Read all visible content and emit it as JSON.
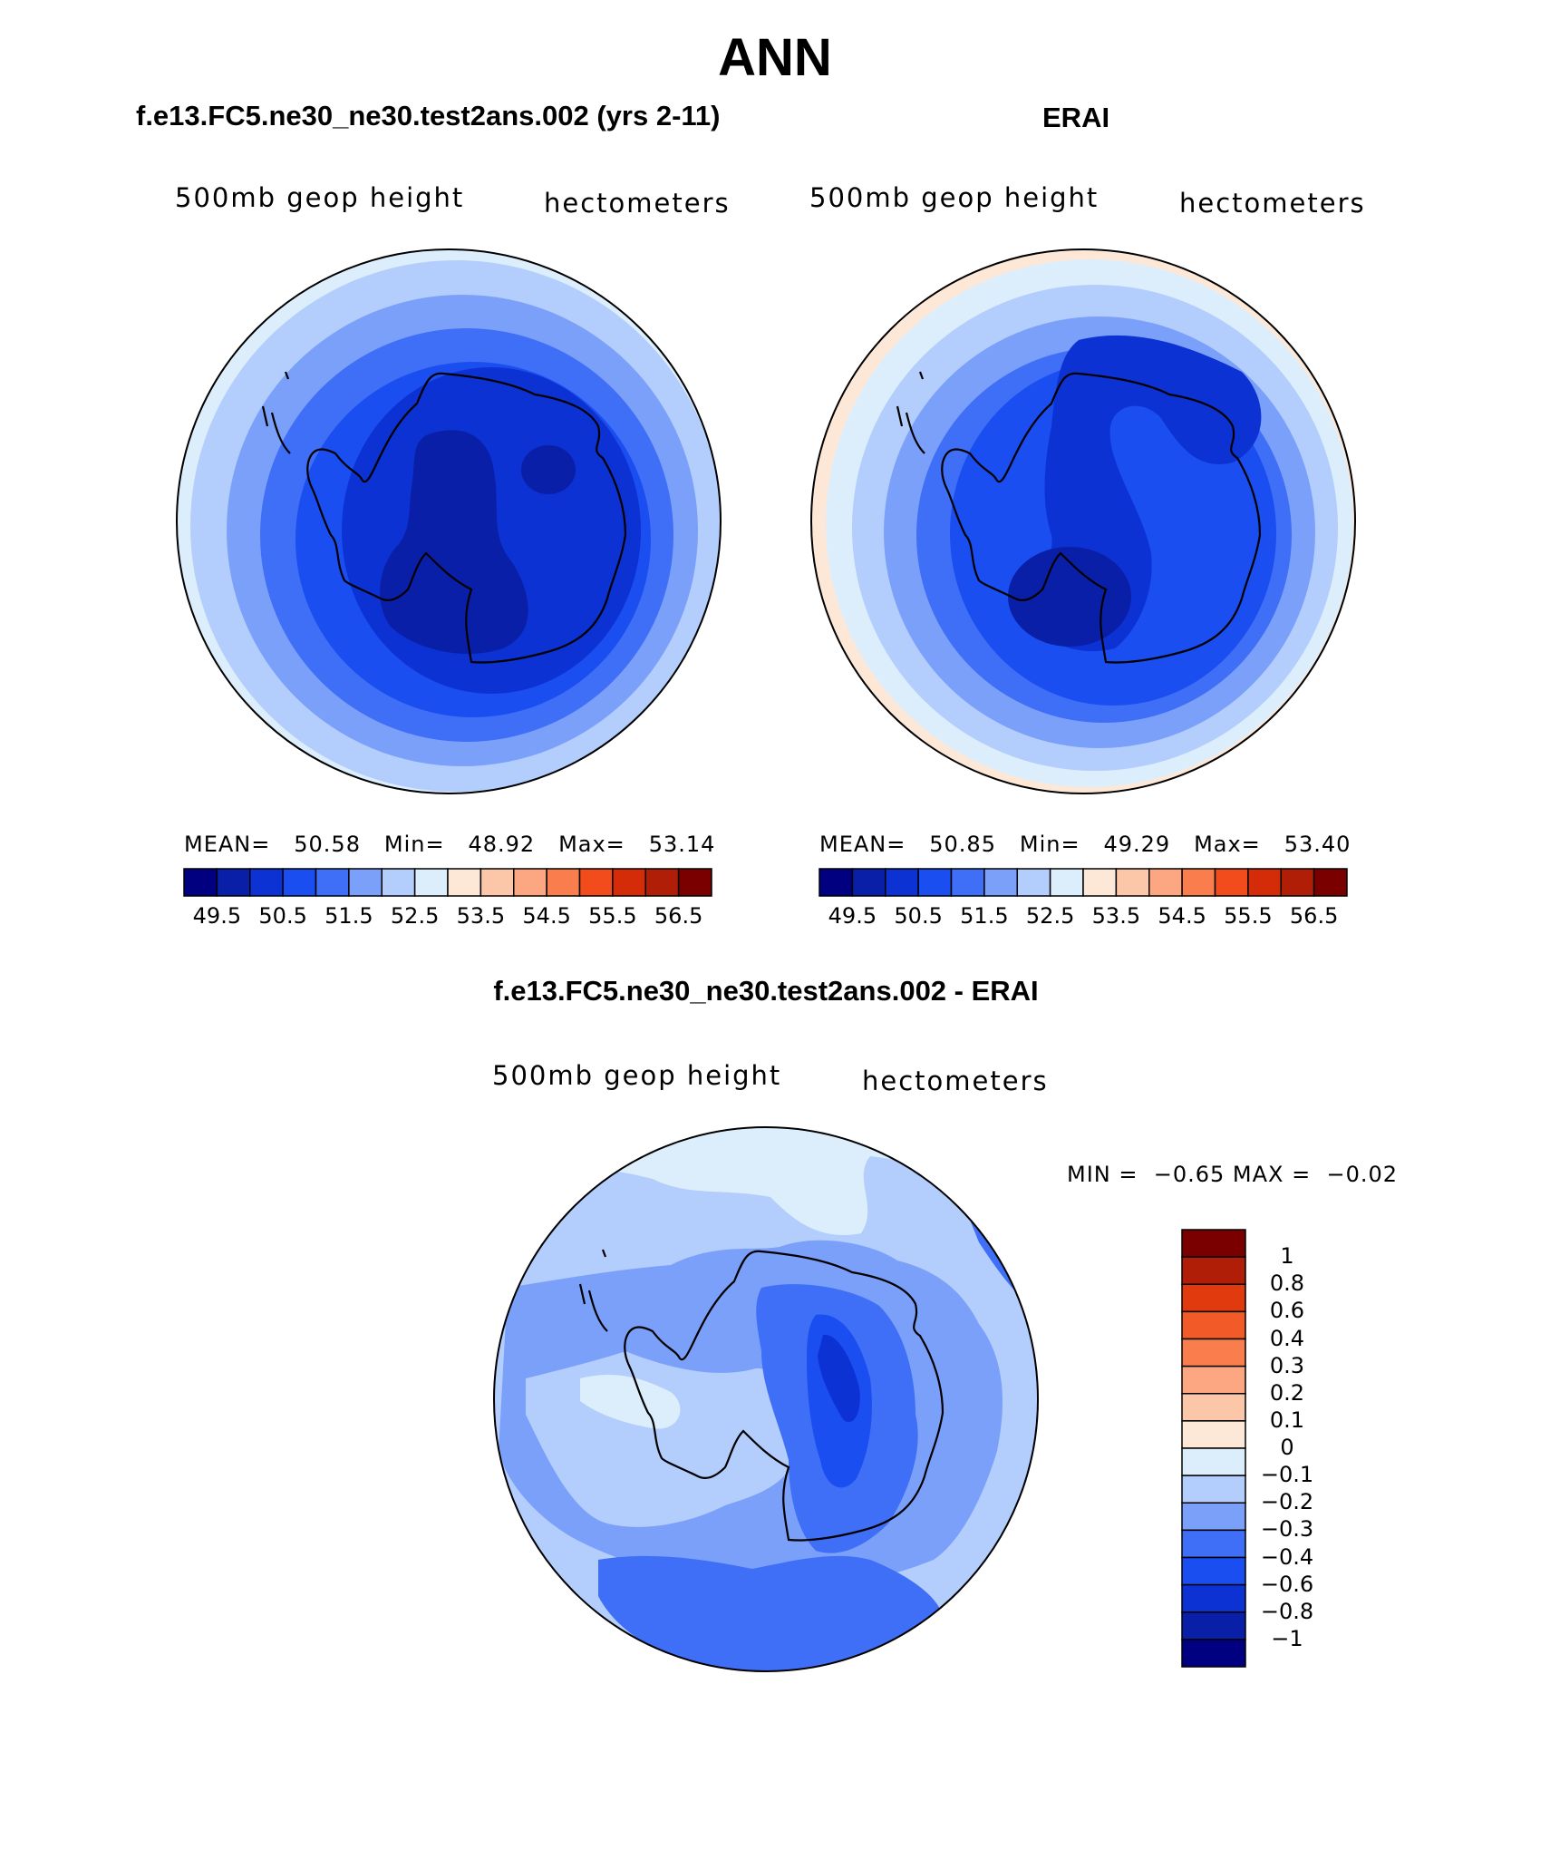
{
  "title": "ANN",
  "panels": [
    {
      "id": "model",
      "heading": "f.e13.FC5.ne30_ne30.test2ans.002 (yrs 2-11)",
      "variable": "500mb geop height",
      "units": "hectometers",
      "stats": {
        "mean_label": "MEAN=",
        "mean": "50.58",
        "min_label": "Min=",
        "min": "48.92",
        "max_label": "Max=",
        "max": "53.14"
      }
    },
    {
      "id": "obs",
      "heading": "ERAI",
      "variable": "500mb geop height",
      "units": "hectometers",
      "stats": {
        "mean_label": "MEAN=",
        "mean": "50.85",
        "min_label": "Min=",
        "min": "49.29",
        "max_label": "Max=",
        "max": "53.40"
      }
    }
  ],
  "difference": {
    "heading": "f.e13.FC5.ne30_ne30.test2ans.002 - ERAI",
    "variable": "500mb geop height",
    "units": "hectometers",
    "stats_text": "MIN =  −0.65 MAX =  −0.02"
  },
  "colorbar_top": {
    "colors": [
      "#000080",
      "#0a1fa8",
      "#0c32d4",
      "#1a4ef0",
      "#3f6ef7",
      "#7aa0fa",
      "#b3cdfc",
      "#dceefc",
      "#fde8d8",
      "#fcc7a8",
      "#fca682",
      "#fa7d4e",
      "#f24b1c",
      "#d42c08",
      "#b01e08",
      "#7a0000"
    ],
    "tick_labels": [
      "49.5",
      "50.5",
      "51.5",
      "52.5",
      "53.5",
      "54.5",
      "55.5",
      "56.5"
    ]
  },
  "colorbar_diff": {
    "colors": [
      "#7a0000",
      "#b01e08",
      "#e03a0e",
      "#f25a28",
      "#fa7d4e",
      "#fca682",
      "#fcc7a8",
      "#fde8d8",
      "#dceefc",
      "#b3cdfc",
      "#7aa0fa",
      "#3f6ef7",
      "#1a4ef0",
      "#0c32d4",
      "#0a1fa8",
      "#000080"
    ],
    "tick_labels": [
      "1",
      "0.8",
      "0.6",
      "0.4",
      "0.3",
      "0.2",
      "0.1",
      "0",
      "−0.1",
      "−0.2",
      "−0.3",
      "−0.4",
      "−0.6",
      "−0.8",
      "−1"
    ]
  }
}
